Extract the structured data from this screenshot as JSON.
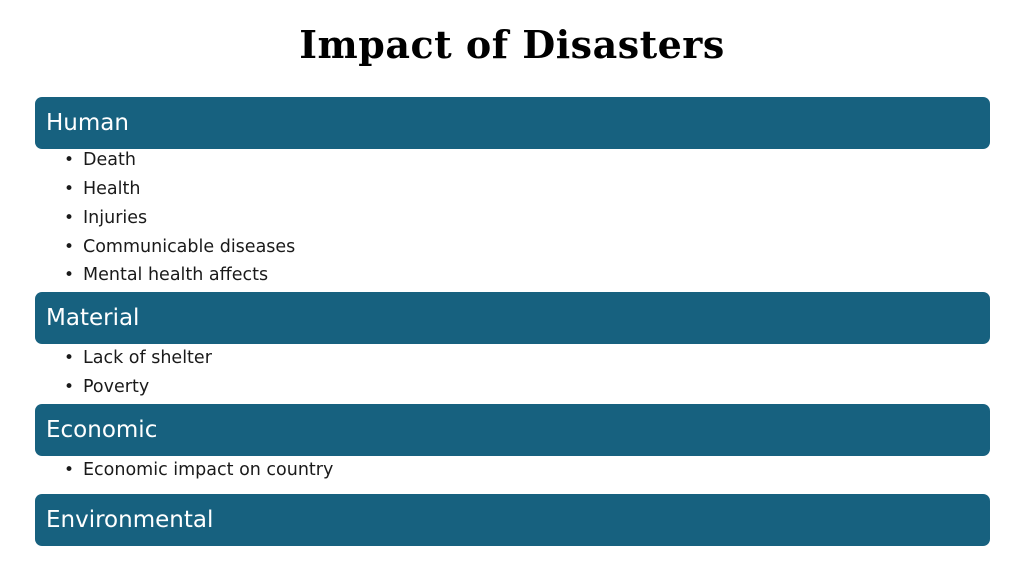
{
  "title": "Impact of Disasters",
  "sections": [
    {
      "label": "Human",
      "items": [
        "Death",
        "Health",
        "Injuries",
        "Communicable diseases",
        "Mental health affects"
      ]
    },
    {
      "label": "Material",
      "items": [
        "Lack of shelter",
        "Poverty"
      ]
    },
    {
      "label": "Economic",
      "items": [
        "Economic impact on country"
      ]
    },
    {
      "label": "Environmental",
      "items": []
    }
  ],
  "bullet_glyph": "•",
  "colors": {
    "section_bar": "#17617f",
    "section_text": "#ffffff",
    "title_text": "#000000",
    "body_text": "#1a1a1a"
  }
}
